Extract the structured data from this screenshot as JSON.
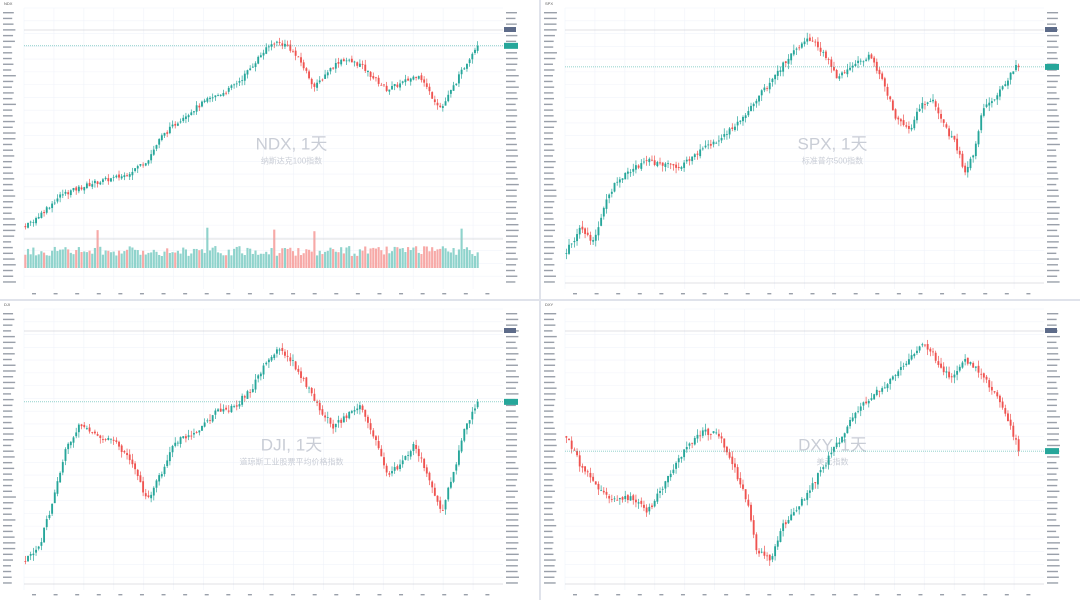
{
  "colors": {
    "up": "#26a69a",
    "down": "#ef5350",
    "vol_up": "#8fd3cc",
    "vol_down": "#f7a9a7",
    "grid": "#f0f3fa",
    "watermark": "#c9cdd6"
  },
  "chart_data": [
    {
      "type": "candlestick",
      "symbol": "NDX",
      "interval": "1天",
      "watermark_title": "NDX, 1天",
      "watermark_subtitle": "纳斯达克100指数",
      "has_volume": true,
      "path": [
        [
          0,
          0.0
        ],
        [
          0.03,
          0.06
        ],
        [
          0.08,
          0.17
        ],
        [
          0.15,
          0.23
        ],
        [
          0.22,
          0.27
        ],
        [
          0.27,
          0.35
        ],
        [
          0.3,
          0.47
        ],
        [
          0.35,
          0.58
        ],
        [
          0.4,
          0.66
        ],
        [
          0.45,
          0.72
        ],
        [
          0.48,
          0.78
        ],
        [
          0.52,
          0.9
        ],
        [
          0.55,
          0.97
        ],
        [
          0.58,
          0.95
        ],
        [
          0.61,
          0.86
        ],
        [
          0.64,
          0.73
        ],
        [
          0.67,
          0.82
        ],
        [
          0.7,
          0.88
        ],
        [
          0.74,
          0.85
        ],
        [
          0.77,
          0.78
        ],
        [
          0.8,
          0.72
        ],
        [
          0.83,
          0.75
        ],
        [
          0.87,
          0.8
        ],
        [
          0.9,
          0.68
        ],
        [
          0.92,
          0.62
        ],
        [
          0.95,
          0.75
        ],
        [
          0.98,
          0.88
        ],
        [
          1.0,
          0.96
        ]
      ]
    },
    {
      "type": "candlestick",
      "symbol": "SPX",
      "interval": "1天",
      "watermark_title": "SPX, 1天",
      "watermark_subtitle": "标准普尔500指数",
      "has_volume": false,
      "path": [
        [
          0,
          0.08
        ],
        [
          0.03,
          0.18
        ],
        [
          0.06,
          0.12
        ],
        [
          0.09,
          0.32
        ],
        [
          0.12,
          0.4
        ],
        [
          0.18,
          0.47
        ],
        [
          0.25,
          0.44
        ],
        [
          0.3,
          0.52
        ],
        [
          0.35,
          0.58
        ],
        [
          0.4,
          0.68
        ],
        [
          0.45,
          0.8
        ],
        [
          0.5,
          0.93
        ],
        [
          0.54,
          0.99
        ],
        [
          0.57,
          0.92
        ],
        [
          0.6,
          0.82
        ],
        [
          0.63,
          0.86
        ],
        [
          0.67,
          0.92
        ],
        [
          0.7,
          0.8
        ],
        [
          0.73,
          0.65
        ],
        [
          0.76,
          0.6
        ],
        [
          0.78,
          0.7
        ],
        [
          0.81,
          0.72
        ],
        [
          0.84,
          0.6
        ],
        [
          0.86,
          0.55
        ],
        [
          0.88,
          0.42
        ],
        [
          0.9,
          0.5
        ],
        [
          0.92,
          0.68
        ],
        [
          0.95,
          0.75
        ],
        [
          0.97,
          0.8
        ],
        [
          1.0,
          0.88
        ]
      ]
    },
    {
      "type": "candlestick",
      "symbol": "DJI",
      "interval": "1天",
      "watermark_title": "DJI, 1天",
      "watermark_subtitle": "道琼斯工业股票平均价格指数",
      "has_volume": false,
      "path": [
        [
          0,
          0.05
        ],
        [
          0.03,
          0.1
        ],
        [
          0.06,
          0.3
        ],
        [
          0.09,
          0.52
        ],
        [
          0.12,
          0.62
        ],
        [
          0.16,
          0.58
        ],
        [
          0.2,
          0.55
        ],
        [
          0.24,
          0.45
        ],
        [
          0.27,
          0.3
        ],
        [
          0.3,
          0.42
        ],
        [
          0.33,
          0.55
        ],
        [
          0.38,
          0.6
        ],
        [
          0.42,
          0.68
        ],
        [
          0.46,
          0.7
        ],
        [
          0.5,
          0.78
        ],
        [
          0.53,
          0.88
        ],
        [
          0.56,
          0.95
        ],
        [
          0.59,
          0.9
        ],
        [
          0.62,
          0.8
        ],
        [
          0.65,
          0.7
        ],
        [
          0.68,
          0.62
        ],
        [
          0.71,
          0.66
        ],
        [
          0.74,
          0.72
        ],
        [
          0.77,
          0.58
        ],
        [
          0.8,
          0.42
        ],
        [
          0.83,
          0.45
        ],
        [
          0.86,
          0.55
        ],
        [
          0.89,
          0.4
        ],
        [
          0.92,
          0.25
        ],
        [
          0.95,
          0.45
        ],
        [
          0.97,
          0.6
        ],
        [
          1.0,
          0.72
        ]
      ]
    },
    {
      "type": "candlestick",
      "symbol": "DXY",
      "interval": "1天",
      "watermark_title": "DXY, 1天",
      "watermark_subtitle": "美元指数",
      "has_volume": false,
      "path": [
        [
          0,
          0.58
        ],
        [
          0.03,
          0.46
        ],
        [
          0.06,
          0.38
        ],
        [
          0.1,
          0.3
        ],
        [
          0.14,
          0.32
        ],
        [
          0.18,
          0.26
        ],
        [
          0.22,
          0.38
        ],
        [
          0.26,
          0.52
        ],
        [
          0.3,
          0.6
        ],
        [
          0.34,
          0.58
        ],
        [
          0.37,
          0.45
        ],
        [
          0.4,
          0.3
        ],
        [
          0.42,
          0.1
        ],
        [
          0.45,
          0.05
        ],
        [
          0.48,
          0.2
        ],
        [
          0.52,
          0.3
        ],
        [
          0.56,
          0.42
        ],
        [
          0.6,
          0.55
        ],
        [
          0.64,
          0.68
        ],
        [
          0.68,
          0.76
        ],
        [
          0.72,
          0.82
        ],
        [
          0.76,
          0.92
        ],
        [
          0.79,
          0.98
        ],
        [
          0.82,
          0.9
        ],
        [
          0.85,
          0.82
        ],
        [
          0.88,
          0.9
        ],
        [
          0.91,
          0.86
        ],
        [
          0.94,
          0.78
        ],
        [
          0.97,
          0.68
        ],
        [
          1.0,
          0.52
        ]
      ]
    }
  ]
}
